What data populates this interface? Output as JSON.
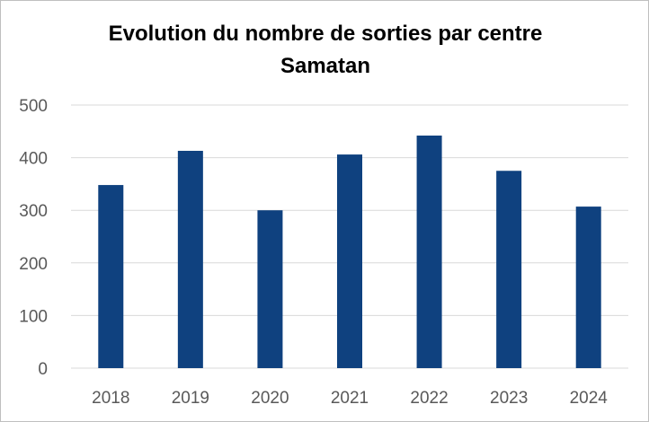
{
  "chart_data": {
    "type": "bar",
    "title": "Evolution du nombre de sorties par centre",
    "subtitle": "Samatan",
    "xlabel": "",
    "ylabel": "",
    "categories": [
      "2018",
      "2019",
      "2020",
      "2021",
      "2022",
      "2023",
      "2024"
    ],
    "values": [
      348,
      413,
      300,
      406,
      442,
      375,
      307
    ],
    "ylim": [
      0,
      500
    ],
    "yticks": [
      0,
      100,
      200,
      300,
      400,
      500
    ],
    "grid": true,
    "legend": "none",
    "bar_color": "#0f417f"
  }
}
